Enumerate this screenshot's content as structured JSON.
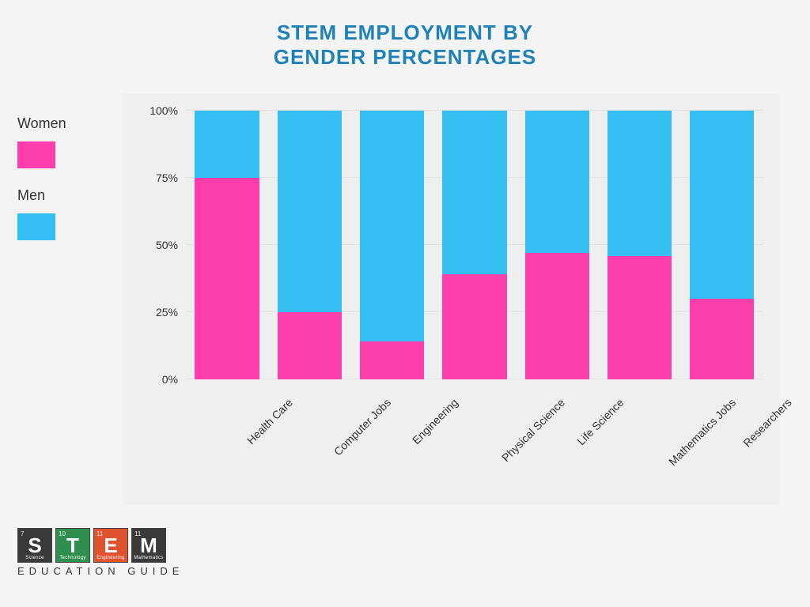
{
  "title_line1": "STEM EMPLOYMENT BY",
  "title_line2": "GENDER PERCENTAGES",
  "title_color": "#1e82b8",
  "title_fontsize": 26,
  "legend": {
    "women_label": "Women",
    "women_color": "#fb3eab",
    "men_label": "Men",
    "men_color": "#34bef2"
  },
  "chart": {
    "type": "stacked_bar_percent",
    "background_color": "#efefef",
    "grid_color": "#e0e0e0",
    "ylim": [
      0,
      100
    ],
    "y_ticks": [
      0,
      25,
      50,
      75,
      100
    ],
    "y_tick_labels": [
      "0%",
      "25%",
      "50%",
      "75%",
      "100%"
    ],
    "bar_width_ratio": 0.78,
    "label_fontsize": 14,
    "x_label_rotation_deg": -45,
    "categories": [
      "Health Care",
      "Computer Jobs",
      "Engineering",
      "Physical Science",
      "Life Science",
      "Mathematics Jobs",
      "Researchers"
    ],
    "women_pct": [
      75,
      25,
      14,
      39,
      47,
      46,
      30
    ],
    "men_pct": [
      25,
      75,
      86,
      61,
      53,
      54,
      70
    ]
  },
  "logo": {
    "tiles": [
      {
        "num": "7",
        "letter": "S",
        "word": "Science",
        "bg": "#3a3a3a"
      },
      {
        "num": "10",
        "letter": "T",
        "word": "Technology",
        "bg": "#2f8f4e"
      },
      {
        "num": "11",
        "letter": "E",
        "word": "Engineering",
        "bg": "#e1532e"
      },
      {
        "num": "11",
        "letter": "M",
        "word": "Mathematics",
        "bg": "#3a3a3a"
      }
    ],
    "subtitle": "EDUCATION GUIDE"
  }
}
